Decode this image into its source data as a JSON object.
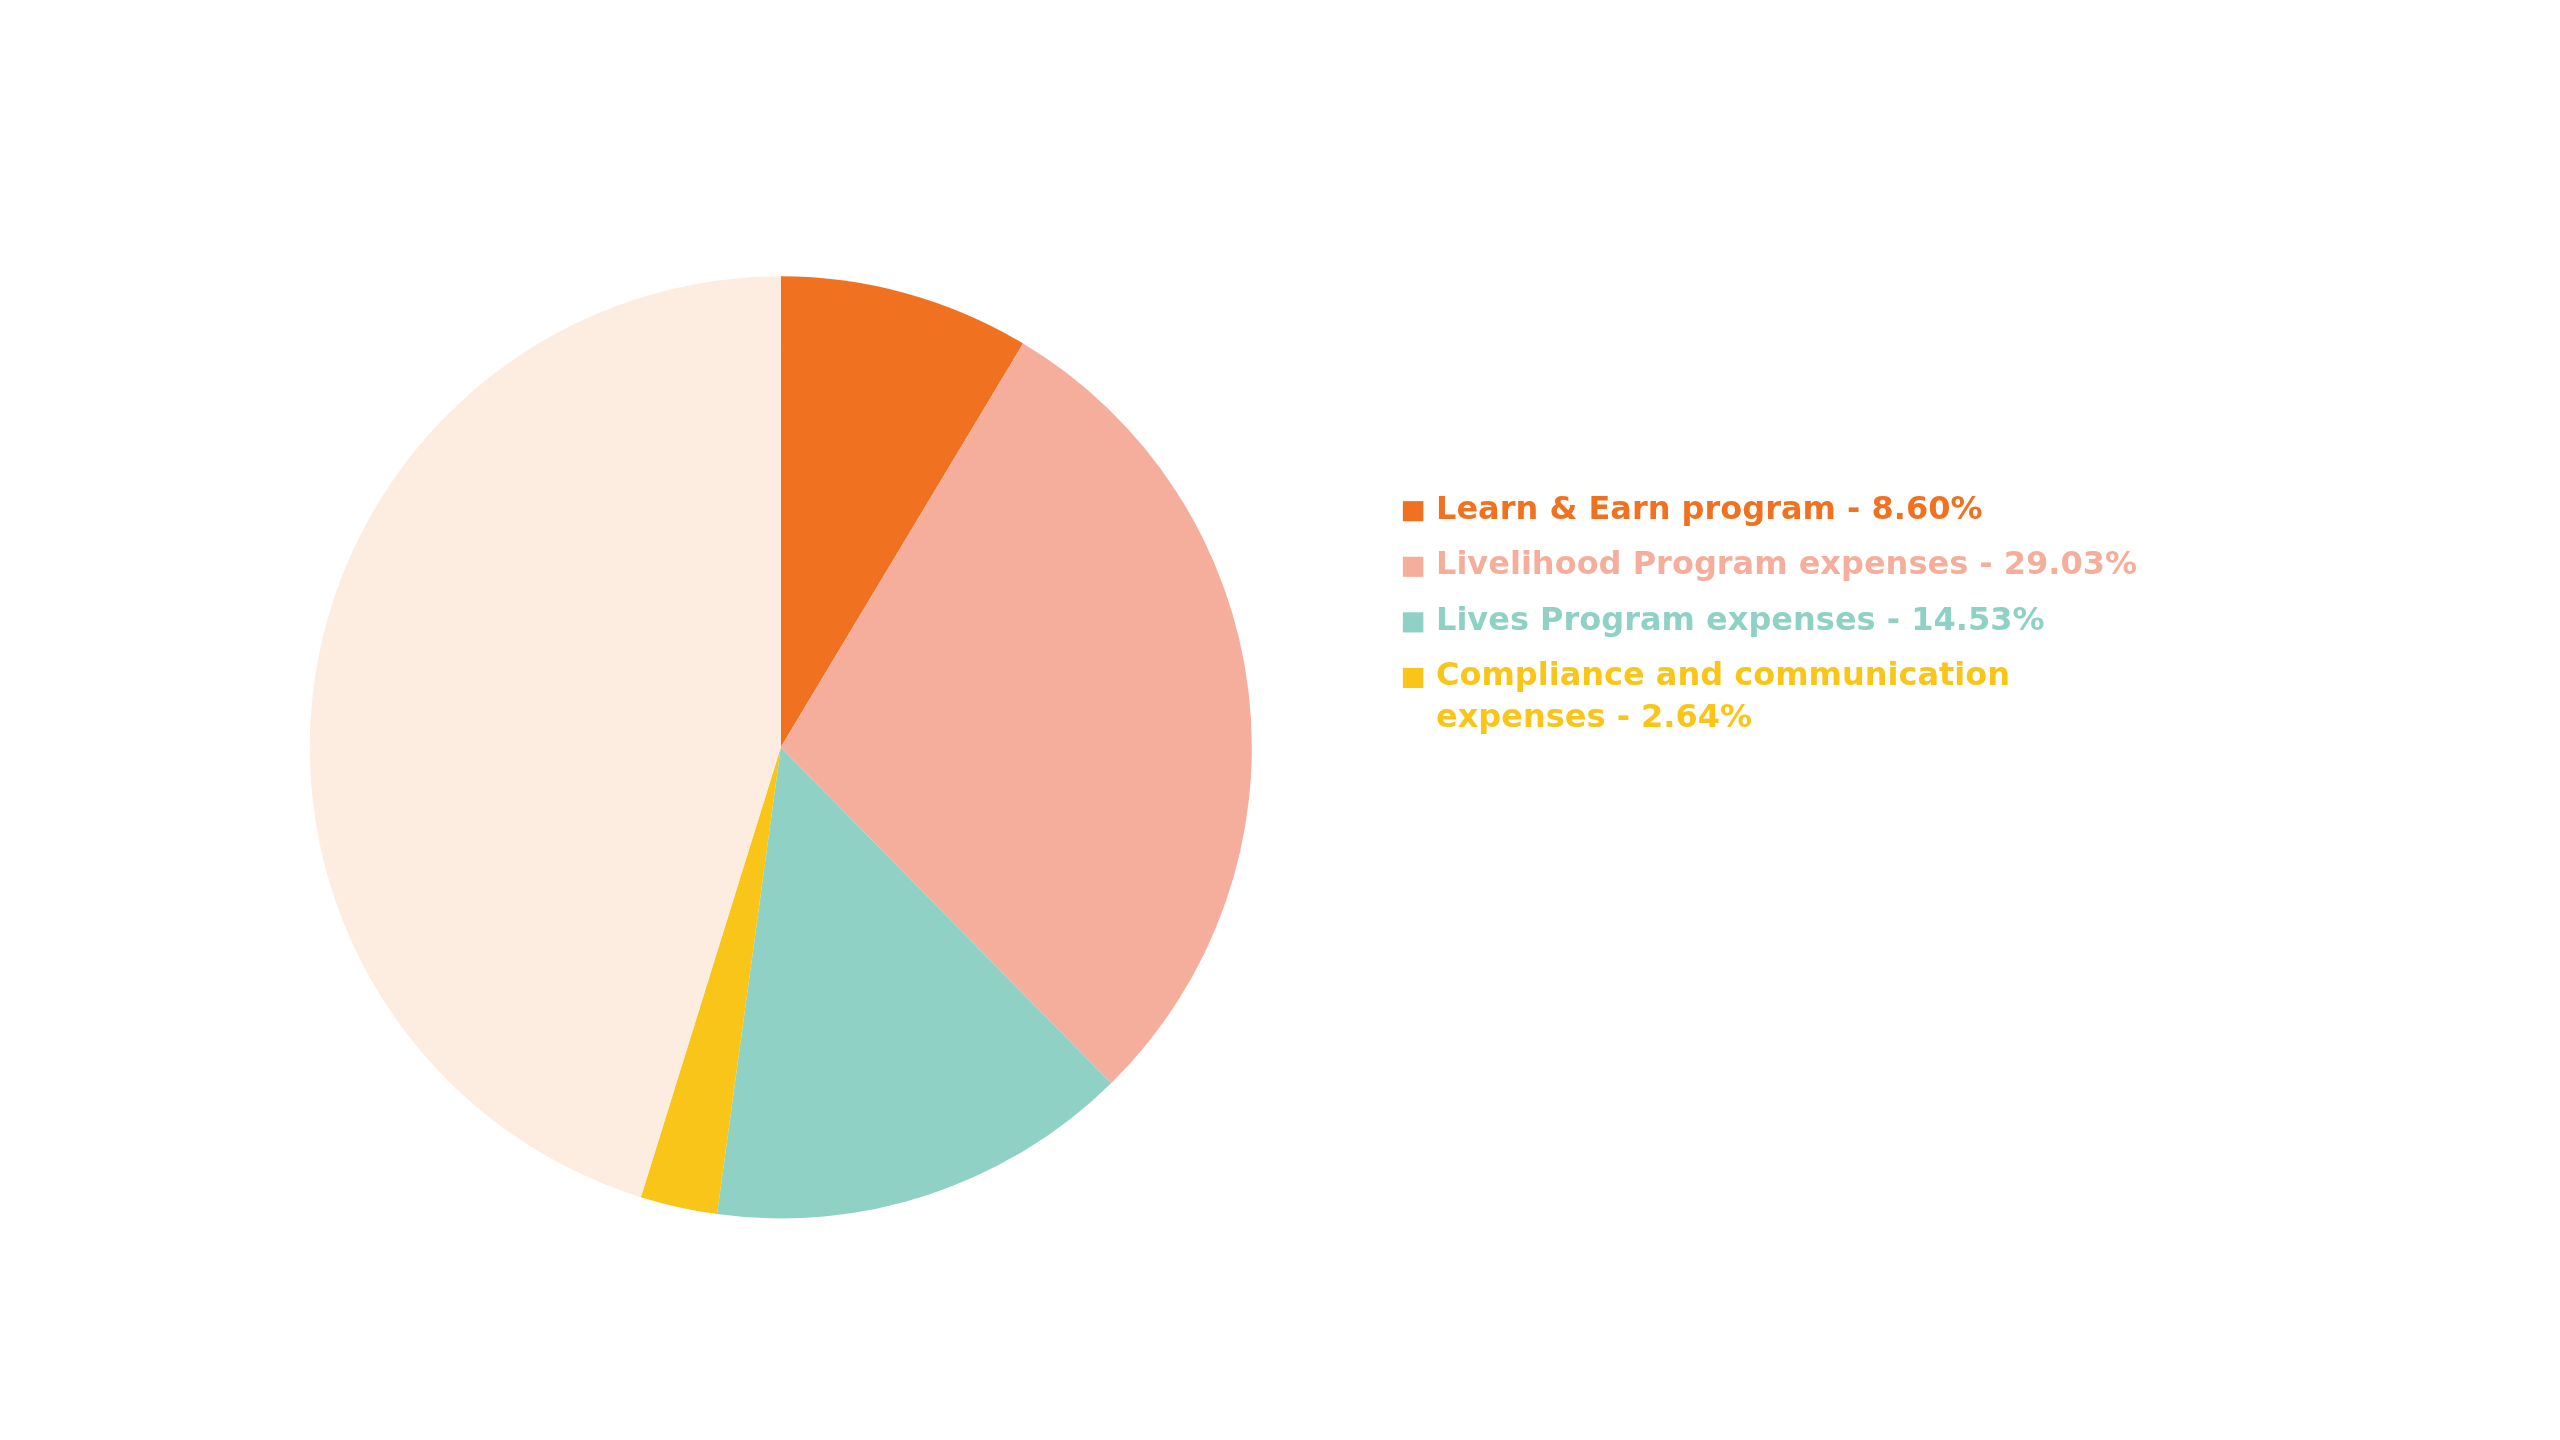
{
  "chart_data": {
    "type": "pie",
    "categories": [
      "Learn & Earn program - 8.60%",
      "Livelihood Program expenses - 29.03%",
      "Lives Program expenses - 14.53%",
      "Compliance and communication expenses - 2.64%",
      null
    ],
    "values": [
      8.6,
      29.03,
      14.53,
      2.64,
      45.2
    ],
    "colors": [
      "#f07220",
      "#f6ae9c",
      "#8fd1c5",
      "#f8c518",
      "#fdece0"
    ],
    "legend": "right"
  }
}
